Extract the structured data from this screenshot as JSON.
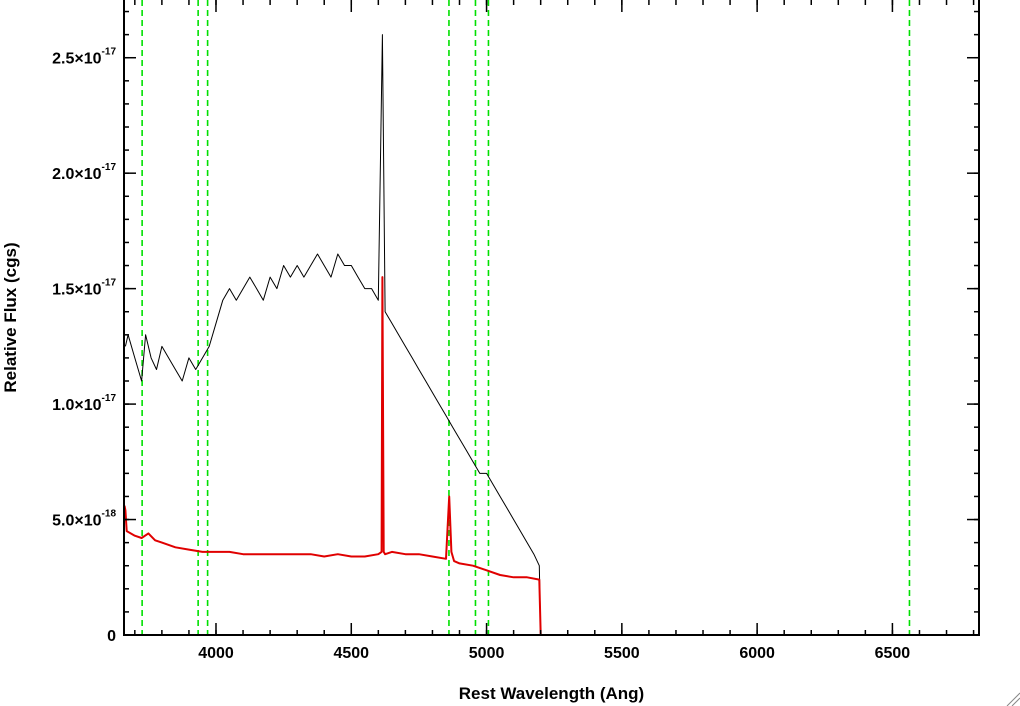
{
  "chart_data": {
    "type": "line",
    "title": "",
    "xlabel": "Rest Wavelength (Ang)",
    "ylabel": "Relative Flux (cgs)",
    "xlim": [
      3660,
      6820
    ],
    "ylim": [
      0,
      2.75e-17
    ],
    "x_ticks": [
      {
        "value": 4000,
        "label": "4000"
      },
      {
        "value": 4500,
        "label": "4500"
      },
      {
        "value": 5000,
        "label": "5000"
      },
      {
        "value": 5500,
        "label": "5500"
      },
      {
        "value": 6000,
        "label": "6000"
      },
      {
        "value": 6500,
        "label": "6500"
      }
    ],
    "y_ticks": [
      {
        "value": 0,
        "mant": "0",
        "exp": ""
      },
      {
        "value": 5e-18,
        "mant": "5.0×10",
        "exp": "-18"
      },
      {
        "value": 1e-17,
        "mant": "1.0×10",
        "exp": "-17"
      },
      {
        "value": 1.5e-17,
        "mant": "1.5×10",
        "exp": "-17"
      },
      {
        "value": 2e-17,
        "mant": "2.0×10",
        "exp": "-17"
      },
      {
        "value": 2.5e-17,
        "mant": "2.5×10",
        "exp": "-17"
      }
    ],
    "x_minor_step": 100,
    "y_minor_step": 1e-18,
    "grid": false,
    "reference_lines": {
      "color": "#00e000",
      "style": "dashed",
      "x": [
        3727,
        3934,
        3969,
        4861,
        4959,
        5007,
        6563
      ]
    },
    "series": [
      {
        "color": "#000000",
        "x": [
          3665,
          3675,
          3700,
          3725,
          3740,
          3760,
          3780,
          3800,
          3825,
          3850,
          3875,
          3900,
          3925,
          3950,
          3975,
          4000,
          4025,
          4050,
          4075,
          4100,
          4125,
          4150,
          4175,
          4200,
          4225,
          4250,
          4275,
          4300,
          4325,
          4350,
          4375,
          4400,
          4425,
          4450,
          4475,
          4500,
          4525,
          4550,
          4575,
          4600,
          4615,
          4625,
          4650,
          4675,
          4700,
          4725,
          4750,
          4775,
          4800,
          4825,
          4850,
          4875,
          4900,
          4925,
          4950,
          4975,
          5000,
          5025,
          5050,
          5075,
          5100,
          5125,
          5150,
          5175,
          5195,
          5200,
          5500,
          6000,
          6500,
          6820
        ],
        "y": [
          1.25e-17,
          1.3e-17,
          1.2e-17,
          1.1e-17,
          1.3e-17,
          1.2e-17,
          1.15e-17,
          1.25e-17,
          1.2e-17,
          1.15e-17,
          1.1e-17,
          1.2e-17,
          1.15e-17,
          1.2e-17,
          1.25e-17,
          1.35e-17,
          1.45e-17,
          1.5e-17,
          1.45e-17,
          1.5e-17,
          1.55e-17,
          1.5e-17,
          1.45e-17,
          1.55e-17,
          1.5e-17,
          1.6e-17,
          1.55e-17,
          1.6e-17,
          1.55e-17,
          1.6e-17,
          1.65e-17,
          1.6e-17,
          1.55e-17,
          1.65e-17,
          1.6e-17,
          1.6e-17,
          1.55e-17,
          1.5e-17,
          1.5e-17,
          1.45e-17,
          2.6e-17,
          1.4e-17,
          1.35e-17,
          1.3e-17,
          1.25e-17,
          1.2e-17,
          1.15e-17,
          1.1e-17,
          1.05e-17,
          1e-17,
          9.5e-18,
          9e-18,
          8.5e-18,
          8e-18,
          7.5e-18,
          7e-18,
          7e-18,
          6.5e-18,
          6e-18,
          5.5e-18,
          5e-18,
          4.5e-18,
          4e-18,
          3.5e-18,
          3e-18,
          0,
          0,
          0,
          0,
          0
        ]
      },
      {
        "color": "#e00000",
        "x": [
          3662,
          3665,
          3670,
          3700,
          3725,
          3750,
          3775,
          3800,
          3850,
          3900,
          3950,
          4000,
          4050,
          4100,
          4150,
          4200,
          4250,
          4300,
          4350,
          4400,
          4450,
          4500,
          4550,
          4600,
          4612,
          4615,
          4620,
          4625,
          4650,
          4700,
          4750,
          4800,
          4850,
          4862,
          4870,
          4880,
          4900,
          4950,
          5000,
          5050,
          5100,
          5150,
          5195,
          5200,
          5500,
          6000,
          6500,
          6820
        ],
        "y": [
          5.6e-18,
          5.4e-18,
          4.5e-18,
          4.3e-18,
          4.2e-18,
          4.4e-18,
          4.1e-18,
          4e-18,
          3.8e-18,
          3.7e-18,
          3.6e-18,
          3.6e-18,
          3.6e-18,
          3.5e-18,
          3.5e-18,
          3.5e-18,
          3.5e-18,
          3.5e-18,
          3.5e-18,
          3.4e-18,
          3.5e-18,
          3.4e-18,
          3.4e-18,
          3.5e-18,
          3.6e-18,
          1.55e-17,
          3.6e-18,
          3.5e-18,
          3.6e-18,
          3.5e-18,
          3.5e-18,
          3.4e-18,
          3.3e-18,
          6e-18,
          3.6e-18,
          3.2e-18,
          3.1e-18,
          3e-18,
          2.8e-18,
          2.6e-18,
          2.5e-18,
          2.5e-18,
          2.4e-18,
          0,
          0,
          0,
          0,
          0
        ]
      }
    ]
  }
}
